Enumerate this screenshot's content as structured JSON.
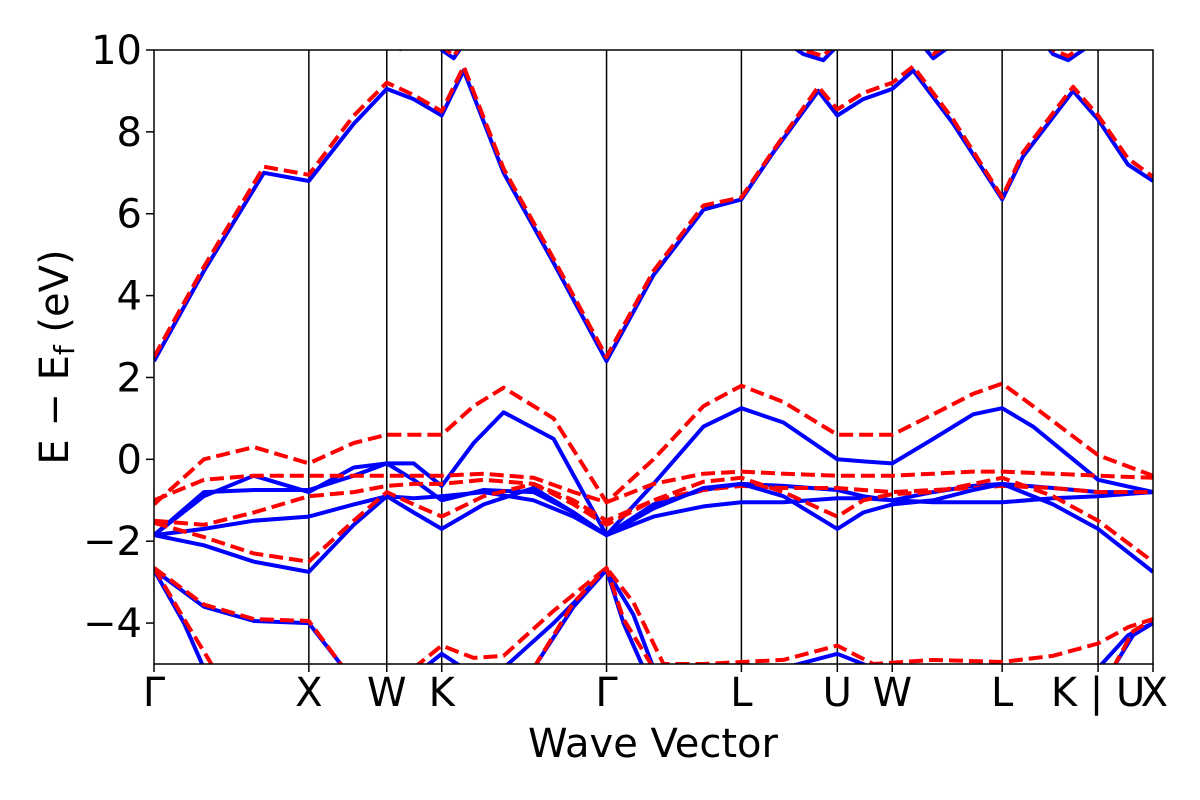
{
  "chart_data": {
    "type": "line",
    "title": "",
    "xlabel": "Wave Vector",
    "ylabel": "E − E_f (eV)",
    "ylabel_parts": {
      "main": "E − E",
      "sub": "f",
      "unit": " (eV)"
    },
    "ylim": [
      -5,
      10
    ],
    "yticks": [
      -4,
      -2,
      0,
      2,
      4,
      6,
      8,
      10
    ],
    "ytick_labels": [
      "−4",
      "−2",
      "0",
      "2",
      "4",
      "6",
      "8",
      "10"
    ],
    "xlim": [
      0,
      1
    ],
    "high_symmetry_points": [
      {
        "label": "Γ",
        "x": 0.0
      },
      {
        "label": "X",
        "x": 0.155
      },
      {
        "label": "W",
        "x": 0.233
      },
      {
        "label": "K",
        "x": 0.288
      },
      {
        "label": "Γ",
        "x": 0.453
      },
      {
        "label": "L",
        "x": 0.588
      },
      {
        "label": "U",
        "x": 0.684
      },
      {
        "label": "W",
        "x": 0.739
      },
      {
        "label": "L",
        "x": 0.849
      },
      {
        "label": "K | U",
        "x": 0.945
      },
      {
        "label": "X",
        "x": 1.0
      }
    ],
    "vertical_lines_x": [
      0.155,
      0.233,
      0.288,
      0.453,
      0.588,
      0.684,
      0.739,
      0.849,
      0.945
    ],
    "grid": false,
    "legend": "none",
    "series_styles": [
      {
        "color": "#0000ff",
        "dash": "solid"
      },
      {
        "color": "#ff0000",
        "dash": "dashed"
      }
    ],
    "series": [
      {
        "color": "#0000ff",
        "dash": "solid",
        "x": [
          0.0,
          0.05,
          0.11,
          0.155,
          0.2,
          0.233,
          0.26,
          0.288,
          0.31,
          0.35,
          0.4,
          0.453,
          0.5,
          0.55,
          0.588,
          0.62,
          0.665,
          0.684,
          0.71,
          0.739,
          0.76,
          0.8,
          0.849,
          0.87,
          0.92,
          0.945,
          0.975,
          1.0
        ],
        "y": [
          2.4,
          4.6,
          7.0,
          6.8,
          8.2,
          9.05,
          8.8,
          8.4,
          9.5,
          7.0,
          4.8,
          2.4,
          4.5,
          6.1,
          6.35,
          7.5,
          9.0,
          8.4,
          8.8,
          9.05,
          9.5,
          8.2,
          6.35,
          7.4,
          9.0,
          8.3,
          7.2,
          6.8
        ]
      },
      {
        "color": "#ff0000",
        "dash": "dashed",
        "x": [
          0.0,
          0.05,
          0.11,
          0.155,
          0.2,
          0.233,
          0.26,
          0.288,
          0.31,
          0.35,
          0.4,
          0.453,
          0.5,
          0.55,
          0.588,
          0.62,
          0.665,
          0.684,
          0.71,
          0.739,
          0.76,
          0.8,
          0.849,
          0.87,
          0.92,
          0.945,
          0.975,
          1.0
        ],
        "y": [
          2.5,
          4.7,
          7.15,
          6.95,
          8.4,
          9.2,
          8.9,
          8.5,
          9.6,
          7.1,
          4.9,
          2.5,
          4.6,
          6.2,
          6.4,
          7.55,
          9.1,
          8.55,
          8.95,
          9.2,
          9.6,
          8.3,
          6.4,
          7.5,
          9.1,
          8.4,
          7.35,
          6.9
        ]
      },
      {
        "color": "#0000ff",
        "dash": "solid",
        "x": [
          0.245,
          0.27,
          0.288,
          0.3,
          0.32,
          0.34
        ],
        "y": [
          10.0,
          10.6,
          10.0,
          9.8,
          10.5,
          11.0
        ]
      },
      {
        "color": "#ff0000",
        "dash": "dashed",
        "x": [
          0.245,
          0.27,
          0.288,
          0.3,
          0.32,
          0.34
        ],
        "y": [
          10.0,
          10.6,
          10.1,
          9.85,
          10.55,
          11.0
        ]
      },
      {
        "color": "#0000ff",
        "dash": "solid",
        "x": [
          0.62,
          0.65,
          0.67,
          0.684,
          0.7,
          0.73
        ],
        "y": [
          10.4,
          9.9,
          9.75,
          10.1,
          10.6,
          11.0
        ]
      },
      {
        "color": "#ff0000",
        "dash": "dashed",
        "x": [
          0.62,
          0.65,
          0.67,
          0.684,
          0.7,
          0.73
        ],
        "y": [
          10.5,
          10.0,
          9.85,
          10.2,
          10.7,
          11.0
        ]
      },
      {
        "color": "#0000ff",
        "dash": "solid",
        "x": [
          0.88,
          0.9,
          0.915,
          0.93,
          0.95
        ],
        "y": [
          10.5,
          9.9,
          9.75,
          10.0,
          10.5
        ]
      },
      {
        "color": "#ff0000",
        "dash": "dashed",
        "x": [
          0.88,
          0.9,
          0.915,
          0.93,
          0.95
        ],
        "y": [
          10.6,
          10.0,
          9.85,
          10.1,
          10.6
        ]
      },
      {
        "color": "#0000ff",
        "dash": "solid",
        "x": [
          0.739,
          0.78,
          0.849
        ],
        "y": [
          11.0,
          9.8,
          11.0
        ]
      },
      {
        "color": "#ff0000",
        "dash": "dashed",
        "x": [
          0.739,
          0.78,
          0.849
        ],
        "y": [
          11.0,
          9.9,
          11.0
        ]
      },
      {
        "color": "#0000ff",
        "dash": "solid",
        "x": [
          0.0,
          0.05,
          0.1,
          0.155,
          0.2,
          0.233,
          0.26,
          0.288,
          0.32,
          0.35,
          0.4,
          0.453,
          0.5,
          0.55,
          0.588,
          0.63,
          0.684,
          0.71,
          0.739,
          0.78,
          0.82,
          0.849,
          0.88,
          0.945,
          1.0
        ],
        "y": [
          -1.85,
          -0.9,
          -0.4,
          -0.8,
          -0.2,
          -0.1,
          -0.1,
          -0.65,
          0.4,
          1.15,
          0.5,
          -1.85,
          -0.6,
          0.8,
          1.25,
          0.9,
          0.0,
          -0.05,
          -0.1,
          0.5,
          1.1,
          1.25,
          0.8,
          -0.5,
          -0.8
        ]
      },
      {
        "color": "#ff0000",
        "dash": "dashed",
        "x": [
          0.0,
          0.05,
          0.1,
          0.155,
          0.2,
          0.233,
          0.26,
          0.288,
          0.32,
          0.35,
          0.4,
          0.453,
          0.5,
          0.55,
          0.588,
          0.63,
          0.684,
          0.71,
          0.739,
          0.78,
          0.82,
          0.849,
          0.88,
          0.945,
          1.0
        ],
        "y": [
          -1.1,
          0.0,
          0.3,
          -0.1,
          0.4,
          0.6,
          0.6,
          0.6,
          1.3,
          1.75,
          1.0,
          -1.05,
          0.0,
          1.3,
          1.8,
          1.4,
          0.6,
          0.6,
          0.6,
          1.1,
          1.6,
          1.85,
          1.3,
          0.1,
          -0.4
        ]
      },
      {
        "color": "#0000ff",
        "dash": "solid",
        "x": [
          0.0,
          0.05,
          0.1,
          0.155,
          0.2,
          0.233,
          0.26,
          0.288,
          0.33,
          0.38,
          0.42,
          0.453,
          0.5,
          0.55,
          0.588,
          0.63,
          0.684,
          0.71,
          0.739,
          0.78,
          0.82,
          0.849,
          0.9,
          0.945,
          1.0
        ],
        "y": [
          -1.85,
          -0.8,
          -0.75,
          -0.75,
          -0.4,
          -0.1,
          -0.5,
          -1.0,
          -0.75,
          -0.8,
          -1.3,
          -1.85,
          -1.1,
          -0.75,
          -0.6,
          -0.65,
          -0.75,
          -0.9,
          -1.0,
          -0.8,
          -0.65,
          -0.6,
          -0.7,
          -0.8,
          -0.8
        ]
      },
      {
        "color": "#ff0000",
        "dash": "dashed",
        "x": [
          0.0,
          0.05,
          0.1,
          0.155,
          0.2,
          0.233,
          0.26,
          0.288,
          0.33,
          0.38,
          0.42,
          0.453,
          0.5,
          0.55,
          0.588,
          0.63,
          0.684,
          0.71,
          0.739,
          0.78,
          0.82,
          0.849,
          0.9,
          0.945,
          1.0
        ],
        "y": [
          -1.0,
          -0.5,
          -0.4,
          -0.4,
          -0.4,
          -0.4,
          -0.4,
          -0.4,
          -0.35,
          -0.45,
          -0.8,
          -1.05,
          -0.6,
          -0.35,
          -0.3,
          -0.35,
          -0.4,
          -0.4,
          -0.4,
          -0.35,
          -0.3,
          -0.3,
          -0.35,
          -0.4,
          -0.45
        ]
      },
      {
        "color": "#0000ff",
        "dash": "solid",
        "x": [
          0.0,
          0.05,
          0.1,
          0.155,
          0.2,
          0.233,
          0.26,
          0.288,
          0.33,
          0.38,
          0.42,
          0.453,
          0.5,
          0.55,
          0.588,
          0.63,
          0.684,
          0.71,
          0.739,
          0.78,
          0.82,
          0.849,
          0.9,
          0.945,
          1.0
        ],
        "y": [
          -1.85,
          -1.7,
          -1.5,
          -1.4,
          -1.1,
          -0.9,
          -0.95,
          -0.9,
          -0.8,
          -1.0,
          -1.4,
          -1.85,
          -1.4,
          -1.15,
          -1.05,
          -1.05,
          -0.95,
          -0.95,
          -1.0,
          -1.05,
          -1.05,
          -1.05,
          -0.95,
          -0.9,
          -0.8
        ]
      },
      {
        "color": "#ff0000",
        "dash": "dashed",
        "x": [
          0.0,
          0.05,
          0.1,
          0.155,
          0.2,
          0.233,
          0.26,
          0.288,
          0.33,
          0.38,
          0.42,
          0.453,
          0.5,
          0.55,
          0.588,
          0.63,
          0.684,
          0.71,
          0.739,
          0.78,
          0.82,
          0.849,
          0.9,
          0.945,
          1.0
        ],
        "y": [
          -1.5,
          -1.6,
          -1.3,
          -0.9,
          -0.8,
          -0.65,
          -0.6,
          -0.6,
          -0.5,
          -0.6,
          -1.0,
          -1.5,
          -1.0,
          -0.75,
          -0.65,
          -0.7,
          -0.7,
          -0.75,
          -0.8,
          -0.75,
          -0.7,
          -0.65,
          -0.7,
          -0.8,
          -0.8
        ]
      },
      {
        "color": "#0000ff",
        "dash": "solid",
        "x": [
          0.0,
          0.05,
          0.1,
          0.155,
          0.2,
          0.233,
          0.26,
          0.288,
          0.33,
          0.38,
          0.42,
          0.453,
          0.5,
          0.55,
          0.588,
          0.63,
          0.684,
          0.71,
          0.739,
          0.78,
          0.82,
          0.849,
          0.9,
          0.945,
          1.0
        ],
        "y": [
          -1.85,
          -2.1,
          -2.5,
          -2.75,
          -1.6,
          -0.9,
          -1.3,
          -1.7,
          -1.1,
          -0.7,
          -1.3,
          -1.85,
          -1.2,
          -0.7,
          -0.6,
          -0.9,
          -1.7,
          -1.3,
          -1.1,
          -1.0,
          -0.75,
          -0.6,
          -1.1,
          -1.7,
          -2.75
        ]
      },
      {
        "color": "#ff0000",
        "dash": "dashed",
        "x": [
          0.0,
          0.05,
          0.1,
          0.155,
          0.2,
          0.233,
          0.26,
          0.288,
          0.33,
          0.38,
          0.42,
          0.453,
          0.5,
          0.55,
          0.588,
          0.63,
          0.684,
          0.71,
          0.739,
          0.78,
          0.82,
          0.849,
          0.9,
          0.945,
          1.0
        ],
        "y": [
          -1.55,
          -1.9,
          -2.3,
          -2.5,
          -1.5,
          -0.8,
          -1.1,
          -1.4,
          -0.9,
          -0.6,
          -1.1,
          -1.6,
          -1.0,
          -0.55,
          -0.45,
          -0.8,
          -1.4,
          -1.0,
          -0.85,
          -0.8,
          -0.6,
          -0.45,
          -0.9,
          -1.5,
          -2.5
        ]
      },
      {
        "color": "#0000ff",
        "dash": "solid",
        "x": [
          0.0,
          0.05,
          0.1,
          0.155,
          0.19
        ],
        "y": [
          -2.7,
          -3.6,
          -3.95,
          -4.0,
          -5.1
        ]
      },
      {
        "color": "#ff0000",
        "dash": "dashed",
        "x": [
          0.0,
          0.05,
          0.1,
          0.155,
          0.19
        ],
        "y": [
          -2.65,
          -3.55,
          -3.9,
          -3.95,
          -5.1
        ]
      },
      {
        "color": "#0000ff",
        "dash": "solid",
        "x": [
          0.0,
          0.03,
          0.05
        ],
        "y": [
          -2.7,
          -4.0,
          -5.1
        ]
      },
      {
        "color": "#ff0000",
        "dash": "dashed",
        "x": [
          0.0,
          0.03,
          0.06
        ],
        "y": [
          -2.65,
          -3.9,
          -5.1
        ]
      },
      {
        "color": "#0000ff",
        "dash": "solid",
        "x": [
          0.27,
          0.288,
          0.31,
          0.35,
          0.4,
          0.453,
          0.48,
          0.5,
          0.55,
          0.588,
          0.63,
          0.684,
          0.72,
          0.78,
          0.849,
          0.9,
          0.945,
          0.975,
          1.0
        ],
        "y": [
          -5.1,
          -4.75,
          -5.1,
          -5.1,
          -4.0,
          -2.7,
          -3.8,
          -5.1,
          -5.1,
          -5.1,
          -5.1,
          -4.75,
          -5.1,
          -5.1,
          -5.1,
          -5.1,
          -5.1,
          -4.3,
          -4.0
        ]
      },
      {
        "color": "#ff0000",
        "dash": "dashed",
        "x": [
          0.26,
          0.288,
          0.32,
          0.35,
          0.4,
          0.453,
          0.48,
          0.51,
          0.55,
          0.588,
          0.63,
          0.684,
          0.72,
          0.78,
          0.849,
          0.9,
          0.945,
          0.975,
          1.0
        ],
        "y": [
          -5.1,
          -4.55,
          -4.85,
          -4.8,
          -3.7,
          -2.65,
          -3.5,
          -5.0,
          -5.0,
          -4.95,
          -4.9,
          -4.55,
          -5.0,
          -4.9,
          -4.95,
          -4.8,
          -4.5,
          -4.1,
          -3.9
        ]
      },
      {
        "color": "#0000ff",
        "dash": "solid",
        "x": [
          0.38,
          0.42,
          0.453,
          0.47,
          0.49
        ],
        "y": [
          -5.1,
          -3.6,
          -2.7,
          -4.0,
          -5.1
        ]
      },
      {
        "color": "#ff0000",
        "dash": "dashed",
        "x": [
          0.38,
          0.42,
          0.453,
          0.47,
          0.5
        ],
        "y": [
          -5.1,
          -3.5,
          -2.65,
          -3.9,
          -5.1
        ]
      },
      {
        "color": "#0000ff",
        "dash": "solid",
        "x": [
          0.96,
          0.98,
          1.0
        ],
        "y": [
          -5.1,
          -4.3,
          -4.0
        ]
      },
      {
        "color": "#ff0000",
        "dash": "dashed",
        "x": [
          0.96,
          0.98,
          1.0
        ],
        "y": [
          -5.1,
          -4.2,
          -3.9
        ]
      }
    ]
  }
}
